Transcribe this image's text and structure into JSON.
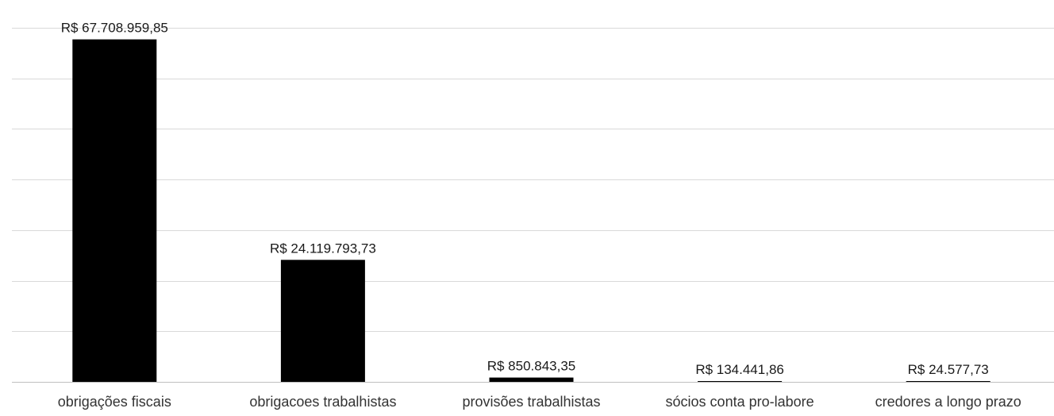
{
  "chart_data": {
    "type": "bar",
    "title": "",
    "xlabel": "",
    "ylabel": "",
    "categories": [
      "obrigações fiscais",
      "obrigacoes trabalhistas",
      "provisões trabalhistas",
      "sócios conta pro-labore",
      "credores a longo prazo"
    ],
    "values": [
      67708959.85,
      24119793.73,
      850843.35,
      134441.86,
      24577.73
    ],
    "data_labels": [
      "R$ 67.708.959,85",
      "R$ 24.119.793,73",
      "R$ 850.843,35",
      "R$ 134.441,86",
      "R$ 24.577,73"
    ],
    "ylim": [
      0,
      70000000
    ],
    "y_grid_step": 10000000,
    "grid": true,
    "y_axis_labels_visible": false,
    "legend": "none",
    "colors": {
      "bar": "#000000",
      "grid": "#d9d9d9",
      "text": "#1a1a1a"
    }
  }
}
